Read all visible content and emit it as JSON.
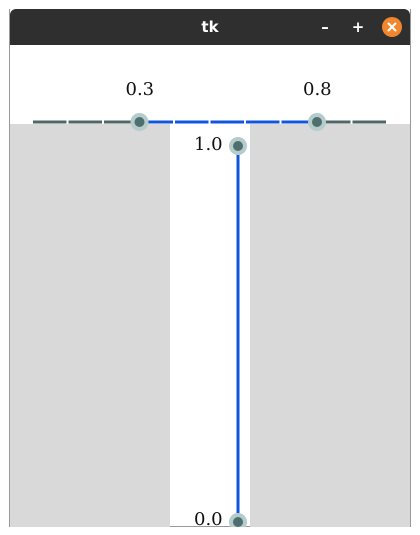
{
  "window": {
    "title": "tk",
    "minimize_label": "–",
    "maximize_label": "+",
    "close_icon": "close-icon"
  },
  "h_slider": {
    "low_value": 0.3,
    "high_value": 0.8,
    "low_label": "0.3",
    "high_label": "0.8",
    "min": 0.0,
    "max": 1.0,
    "active_color": "#1155dd",
    "track_color": "#4f6767",
    "handle_color": "#4f6f6f",
    "handle_halo": "#b5cccc"
  },
  "v_slider": {
    "low_value": 0.0,
    "high_value": 1.0,
    "low_label": "0.0",
    "high_label": "1.0",
    "min": 0.0,
    "max": 1.0,
    "active_color": "#1155dd"
  },
  "colors": {
    "titlebar": "#2f2f2f",
    "close_button": "#f0872d",
    "panel_gray": "#d9d9d9"
  }
}
